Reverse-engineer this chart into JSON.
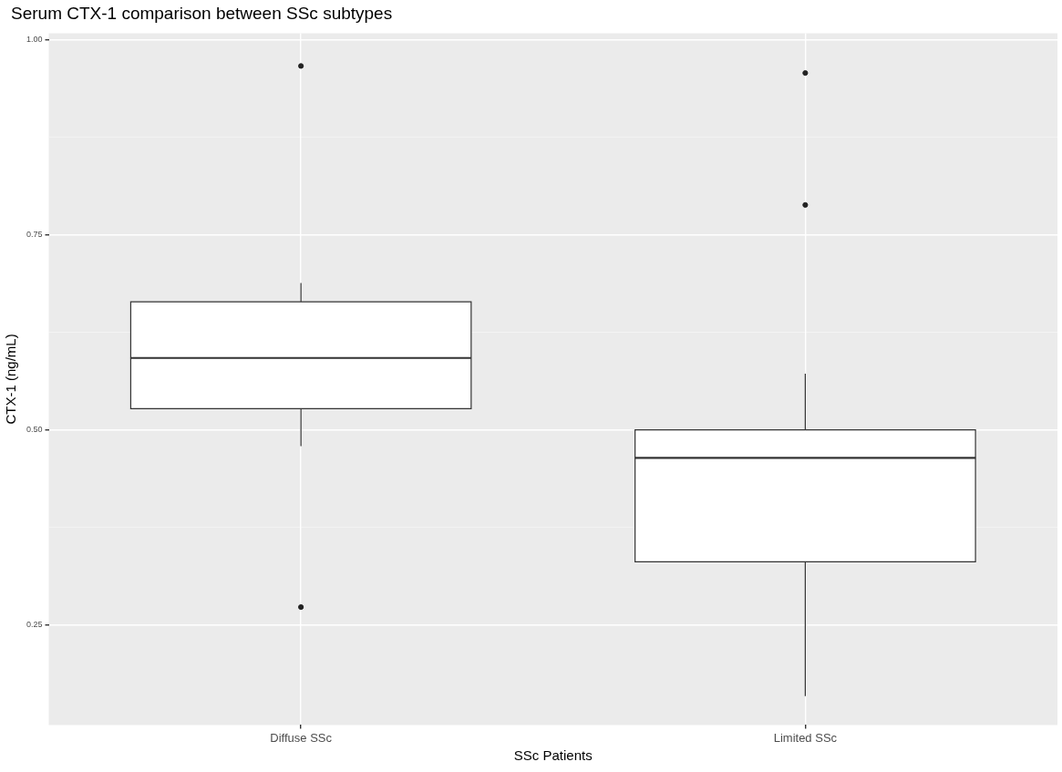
{
  "chart_data": {
    "type": "box",
    "title": "Serum CTX-1 comparison between SSc subtypes",
    "xlabel": "SSc Patients",
    "ylabel": "CTX-1 (ng/mL)",
    "categories": [
      "Diffuse SSc",
      "Limited SSc"
    ],
    "boxes": [
      {
        "low": 0.479,
        "q1": 0.527,
        "median": 0.592,
        "q3": 0.664,
        "high": 0.688,
        "outliers": [
          0.966,
          0.273
        ]
      },
      {
        "low": 0.159,
        "q1": 0.331,
        "median": 0.464,
        "q3": 0.5,
        "high": 0.572,
        "outliers": [
          0.957,
          0.788
        ]
      }
    ],
    "ylim": [
      0.122,
      1.008
    ],
    "yticks": [
      {
        "value": 0.25,
        "label": "0.25"
      },
      {
        "value": 0.5,
        "label": "0.50"
      },
      {
        "value": 0.75,
        "label": "0.75"
      },
      {
        "value": 1,
        "label": "1.00"
      }
    ],
    "grid": true
  }
}
